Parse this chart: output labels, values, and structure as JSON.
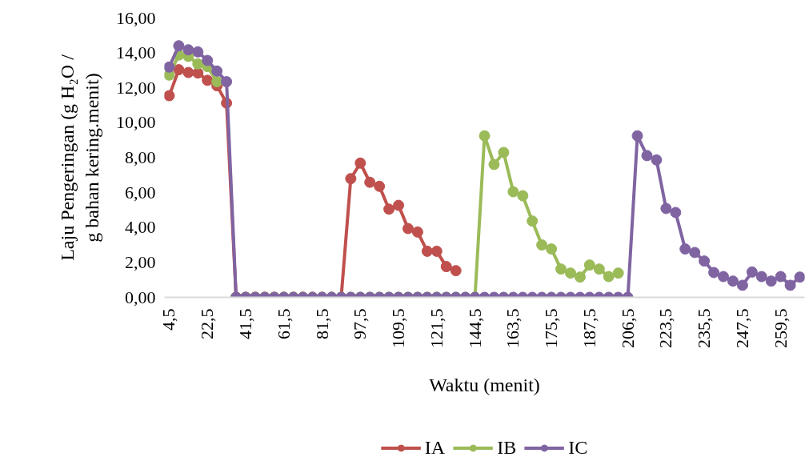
{
  "chart_data": {
    "type": "line",
    "xlabel": "Waktu (menit)",
    "ylabel": "Laju Pengeringan (g H₂O / g bahan kering.menit)",
    "categories": [
      "4,5",
      null,
      null,
      null,
      "22,5",
      null,
      null,
      null,
      "41,5",
      null,
      null,
      null,
      "61,5",
      null,
      null,
      null,
      "81,5",
      null,
      null,
      null,
      "97,5",
      null,
      null,
      null,
      "109,5",
      null,
      null,
      null,
      "121,5",
      null,
      null,
      null,
      "144,5",
      null,
      null,
      null,
      "163,5",
      null,
      null,
      null,
      "175,5",
      null,
      null,
      null,
      "187,5",
      null,
      null,
      null,
      "206,5",
      null,
      null,
      null,
      "223,5",
      null,
      null,
      null,
      "235,5",
      null,
      null,
      null,
      "247,5",
      null,
      null,
      null,
      "259,5",
      null,
      null
    ],
    "series": [
      {
        "name": "IA",
        "color": "#c0504d",
        "values": [
          11.55,
          13.04,
          12.88,
          12.85,
          12.43,
          12.12,
          11.13,
          0,
          0,
          0,
          0,
          0,
          0,
          0,
          0,
          0,
          0,
          0,
          0,
          6.8,
          7.69,
          6.59,
          6.36,
          5.05,
          5.27,
          3.94,
          3.74,
          2.64,
          2.64,
          1.76,
          1.53,
          null,
          null,
          null,
          null,
          null,
          null,
          null,
          null,
          null,
          null,
          null,
          null,
          null,
          null,
          null,
          null,
          null,
          null,
          null,
          null,
          null,
          null,
          null,
          null,
          null,
          null,
          null,
          null,
          null,
          null,
          null,
          null,
          null,
          null,
          null,
          null
        ]
      },
      {
        "name": "IB",
        "color": "#9bbb59",
        "values": [
          12.73,
          13.88,
          13.8,
          13.37,
          13.22,
          12.35,
          null,
          0,
          0,
          0,
          0,
          0,
          0,
          0,
          0,
          0,
          0,
          0,
          0,
          0,
          0,
          0,
          0,
          0,
          0,
          0,
          0,
          0,
          0,
          0,
          0,
          0,
          0,
          9.25,
          7.61,
          8.3,
          6.05,
          5.82,
          4.37,
          3.0,
          2.77,
          1.62,
          1.39,
          1.16,
          1.85,
          1.62,
          1.19,
          1.39,
          null,
          null,
          null,
          null,
          null,
          null,
          null,
          null,
          null,
          null,
          null,
          null,
          null,
          null,
          null,
          null,
          null,
          null,
          null
        ]
      },
      {
        "name": "IC",
        "color": "#8064a2",
        "values": [
          13.19,
          14.41,
          14.18,
          14.06,
          13.57,
          12.96,
          12.35,
          0,
          0,
          0,
          0,
          0,
          0,
          0,
          0,
          0,
          0,
          0,
          0,
          0,
          0,
          0,
          0,
          0,
          0,
          0,
          0,
          0,
          0,
          0,
          0,
          0,
          0,
          0,
          0,
          0,
          0,
          0,
          0,
          0,
          0,
          0,
          0,
          0,
          0,
          0,
          0,
          0,
          0,
          9.25,
          8.12,
          7.87,
          5.09,
          4.86,
          2.77,
          2.57,
          2.08,
          1.42,
          1.19,
          0.93,
          0.69,
          1.45,
          1.19,
          0.93,
          1.19,
          0.69,
          1.16
        ]
      }
    ],
    "ylim": [
      0,
      16
    ],
    "yticks": [
      {
        "value": 0,
        "label": "0,00"
      },
      {
        "value": 2,
        "label": "2,00"
      },
      {
        "value": 4,
        "label": "4,00"
      },
      {
        "value": 6,
        "label": "6,00"
      },
      {
        "value": 8,
        "label": "8,00"
      },
      {
        "value": 10,
        "label": "10,00"
      },
      {
        "value": 12,
        "label": "12,00"
      },
      {
        "value": 14,
        "label": "14,00"
      },
      {
        "value": 16,
        "label": "16,00"
      }
    ],
    "grid": false,
    "legend": "bottom",
    "marker": "circle",
    "line_style": "solid"
  }
}
